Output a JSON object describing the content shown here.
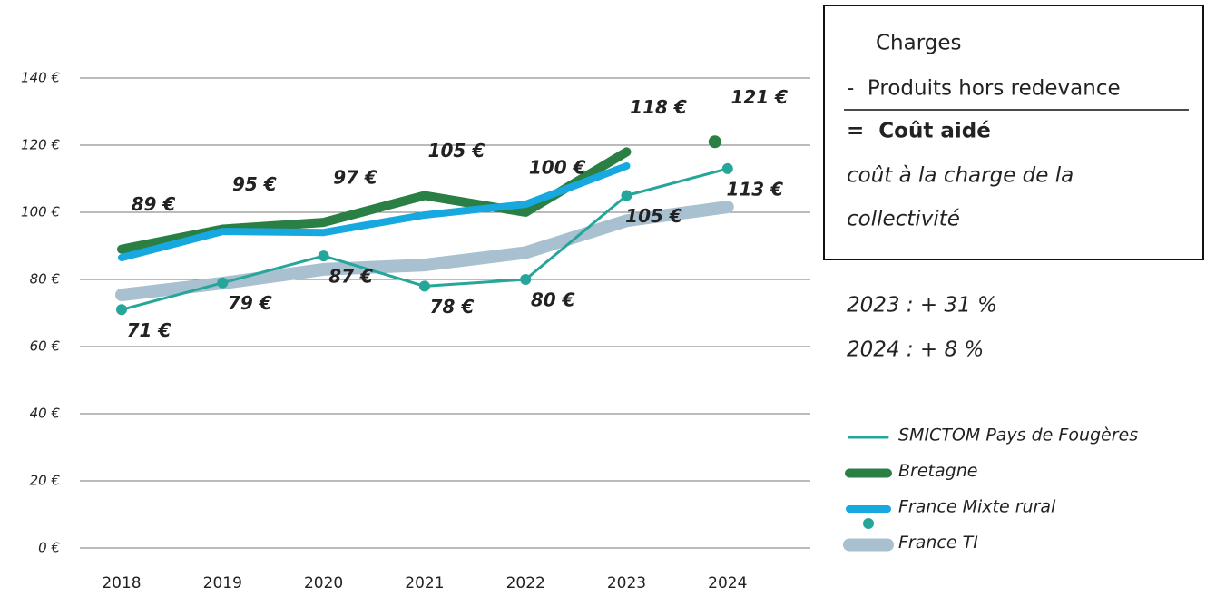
{
  "chart_data": {
    "type": "line",
    "categories": [
      "2018",
      "2019",
      "2020",
      "2021",
      "2022",
      "2023",
      "2024"
    ],
    "ylim": [
      0,
      140
    ],
    "yticks": [
      {
        "value": 0,
        "label": "0 €"
      },
      {
        "value": 20,
        "label": "20 €"
      },
      {
        "value": 40,
        "label": "40 €"
      },
      {
        "value": 60,
        "label": "60 €"
      },
      {
        "value": 80,
        "label": "80 €"
      },
      {
        "value": 100,
        "label": "100 €"
      },
      {
        "value": 120,
        "label": "120 €"
      },
      {
        "value": 140,
        "label": "140 €"
      }
    ],
    "grid": true,
    "series": [
      {
        "name": "SMICTOM Pays de Fougères",
        "color": "#26a69a",
        "values": [
          71,
          79,
          87,
          78,
          80,
          105,
          113
        ],
        "value_labels": [
          "71 €",
          "79 €",
          "87 €",
          "78 €",
          "80 €",
          "105 €",
          "113 €"
        ]
      },
      {
        "name": "Bretagne",
        "color": "#2a7f45",
        "values": [
          89,
          95,
          97,
          105,
          100,
          118,
          121
        ],
        "value_labels": [
          "89 €",
          "95 €",
          "97 €",
          "105 €",
          "100 €",
          "118 €",
          "121 €"
        ]
      },
      {
        "name": "France Mixte rural",
        "color": "#18a8e0",
        "values": [
          86.5,
          94.3,
          94,
          99.2,
          102.4,
          113.8,
          null
        ]
      },
      {
        "name": "France TI",
        "color": "#a8c0d0",
        "values": [
          75.4,
          78.9,
          83,
          84.3,
          88,
          97.5,
          101.6
        ]
      }
    ],
    "annotations": {
      "box": [
        "Charges",
        "-  Produits hors redevance",
        "=  Coût aidé",
        "coût à la charge de la",
        "collectivité"
      ],
      "growth": [
        "2023 : + 31 %",
        "2024 : + 8 %"
      ]
    }
  }
}
